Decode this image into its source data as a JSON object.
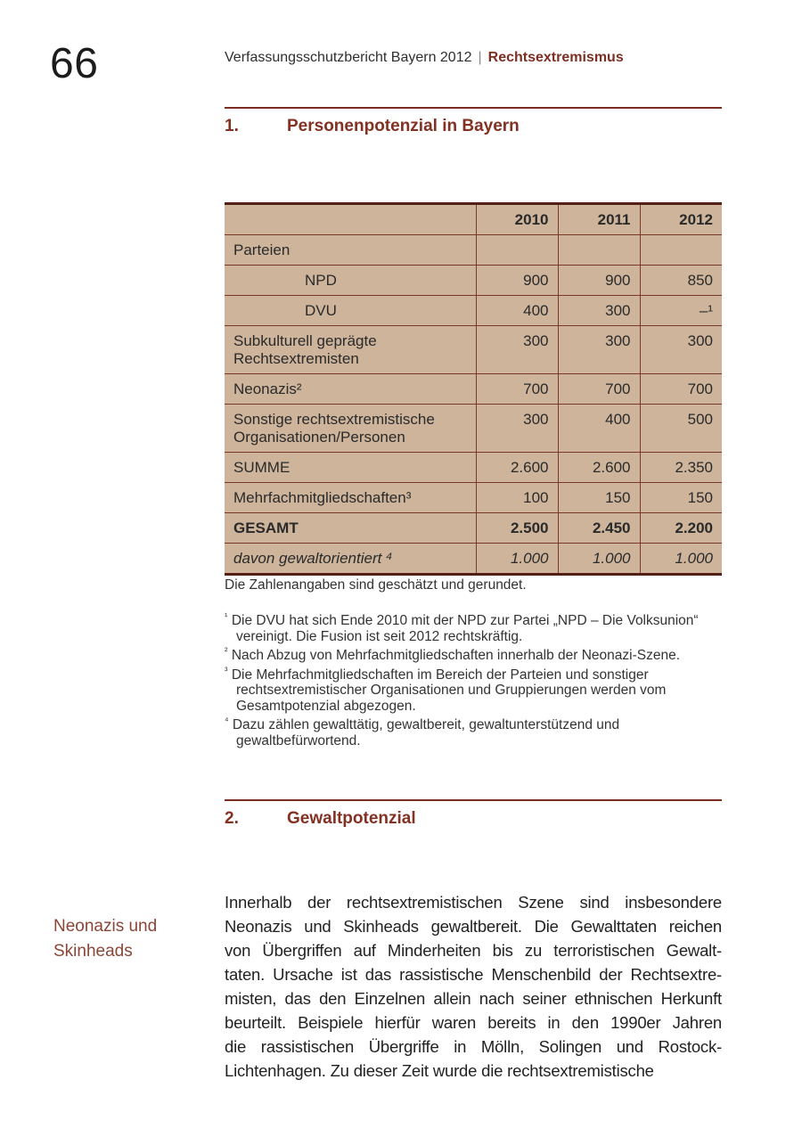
{
  "page": {
    "number": "66",
    "running_head": {
      "title": "Verfassungsschutzbericht Bayern 2012",
      "divider": "|",
      "chapter": "Rechtsextremismus"
    }
  },
  "sections": [
    {
      "number": "1.",
      "title": "Personenpotenzial in Bayern"
    },
    {
      "number": "2.",
      "title": "Gewaltpotenzial"
    }
  ],
  "table": {
    "columns": [
      "",
      "2010",
      "2011",
      "2012"
    ],
    "rows": [
      {
        "label": "Parteien",
        "values": [
          "",
          "",
          ""
        ]
      },
      {
        "label": "NPD",
        "values": [
          "900",
          "900",
          "850"
        ]
      },
      {
        "label": "DVU",
        "values": [
          "400",
          "300",
          "–¹"
        ]
      },
      {
        "label": "Subkulturell geprägte Rechtsextremisten",
        "values": [
          "300",
          "300",
          "300"
        ]
      },
      {
        "label": "Neonazis²",
        "values": [
          "700",
          "700",
          "700"
        ]
      },
      {
        "label": "Sonstige rechtsextremistische Organisationen/Personen",
        "values": [
          "300",
          "400",
          "500"
        ]
      },
      {
        "label": "SUMME",
        "values": [
          "2.600",
          "2.600",
          "2.350"
        ]
      },
      {
        "label": "Mehrfachmitgliedschaften³",
        "values": [
          "100",
          "150",
          "150"
        ]
      },
      {
        "label": "GESAMT",
        "values": [
          "2.500",
          "2.450",
          "2.200"
        ]
      },
      {
        "label": "davon gewaltorientiert ⁴",
        "values": [
          "1.000",
          "1.000",
          "1.000"
        ]
      }
    ],
    "note": "Die Zahlenangaben sind geschätzt und gerundet."
  },
  "footnotes": [
    {
      "marker": "1",
      "text": "Die DVU hat sich Ende 2010 mit der NPD zur Partei „NPD – Die Volksunion“ vereinigt. Die Fusion ist seit 2012 rechtskräftig."
    },
    {
      "marker": "2",
      "text": "Nach Abzug von Mehrfachmitgliedschaften innerhalb der Neonazi-Szene."
    },
    {
      "marker": "3",
      "text": "Die Mehrfachmitgliedschaften im Bereich der Parteien und sonstiger rechtsextremistischer Organisationen und Gruppierungen werden vom Gesamtpotenzial abgezogen."
    },
    {
      "marker": "4",
      "text": "Dazu zählen gewalttätig, gewaltbereit, gewaltunterstützend und gewaltbefürwortend."
    }
  ],
  "margin_note": {
    "line1": "Neonazis und",
    "line2": "Skinheads"
  },
  "body": {
    "lines": [
      "Innerhalb der rechtsextremistischen Szene sind insbesondere",
      "Neonazis und Skinheads gewaltbereit. Die Gewalttaten reichen",
      "von Übergriffen auf Minderheiten bis zu terroristischen Gewalt-",
      "taten. Ursache ist das rassistische Menschenbild der Rechtsextre-",
      "misten, das den Einzelnen allein nach seiner ethnischen Herkunft",
      "beurteilt. Beispiele hierfür waren bereits in den 1990er Jahren",
      "die rassistischen Übergriffe in Mölln, Solingen und Rostock-",
      "Lichtenhagen. Zu dieser Zeit wurde die rechtsextremistische"
    ]
  },
  "colors": {
    "accent": "#833122",
    "table_background": "#cdb49b",
    "table_border": "#7b3a28",
    "table_border_heavy": "#522014"
  }
}
